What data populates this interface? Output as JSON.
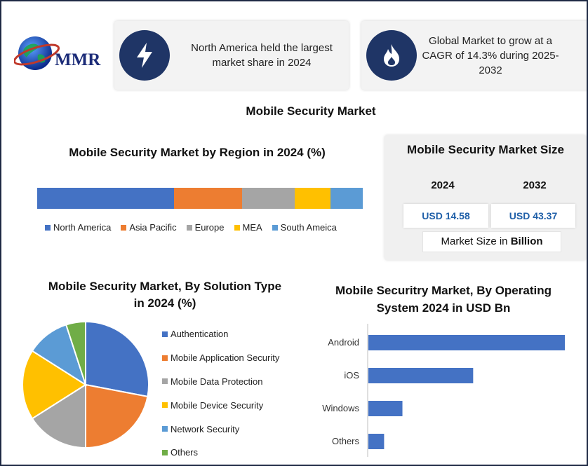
{
  "logo": {
    "text": "MMR"
  },
  "cards": [
    {
      "icon": "lightning-bolt-icon",
      "text": "North America held the largest market share in 2024"
    },
    {
      "icon": "flame-icon",
      "text": "Global Market to grow at a CAGR of 14.3% during 2025-2032"
    }
  ],
  "main_title": "Mobile Security Market",
  "market_size": {
    "title": "Mobile Security Market Size",
    "year_1": "2024",
    "year_2": "2032",
    "value_1": "USD 14.58",
    "value_2": "USD 43.37",
    "note_prefix": "Market Size in ",
    "note_bold": "Billion"
  },
  "colors": {
    "blue": "#4472c4",
    "orange": "#ed7d31",
    "gray": "#a5a5a5",
    "yellow": "#ffc000",
    "light_blue": "#5b9bd5",
    "green": "#70ad47",
    "dark_navy": "#1f3566"
  },
  "chart_data": [
    {
      "type": "bar",
      "orientation": "horizontal-stacked",
      "title": "Mobile Security Market by Region in 2024 (%)",
      "series": [
        {
          "name": "North America",
          "values": [
            42
          ],
          "color": "#4472c4"
        },
        {
          "name": "Asia Pacific",
          "values": [
            21
          ],
          "color": "#ed7d31"
        },
        {
          "name": "Europe",
          "values": [
            16
          ],
          "color": "#a5a5a5"
        },
        {
          "name": "MEA",
          "values": [
            11
          ],
          "color": "#ffc000"
        },
        {
          "name": "South Ameica",
          "values": [
            10
          ],
          "color": "#5b9bd5"
        }
      ],
      "legend": "bottom",
      "grid": false
    },
    {
      "type": "pie",
      "title": "Mobile Security Market, By Solution Type in 2024 (%)",
      "categories": [
        "Authentication",
        "Mobile Application Security",
        "Mobile Data Protection",
        "Mobile Device Security",
        "Network Security",
        "Others"
      ],
      "values": [
        28,
        22,
        16,
        18,
        11,
        5
      ],
      "colors": [
        "#4472c4",
        "#ed7d31",
        "#a5a5a5",
        "#ffc000",
        "#5b9bd5",
        "#70ad47"
      ],
      "legend": "right"
    },
    {
      "type": "bar",
      "orientation": "horizontal",
      "title": "Mobile Securitry Market, By Operating System 2024 in USD Bn",
      "categories": [
        "Android",
        "iOS",
        "Windows",
        "Others"
      ],
      "values": [
        7.5,
        4.0,
        1.3,
        0.6
      ],
      "color": "#4472c4",
      "xlim": [
        0,
        7.5
      ],
      "grid": false
    }
  ]
}
